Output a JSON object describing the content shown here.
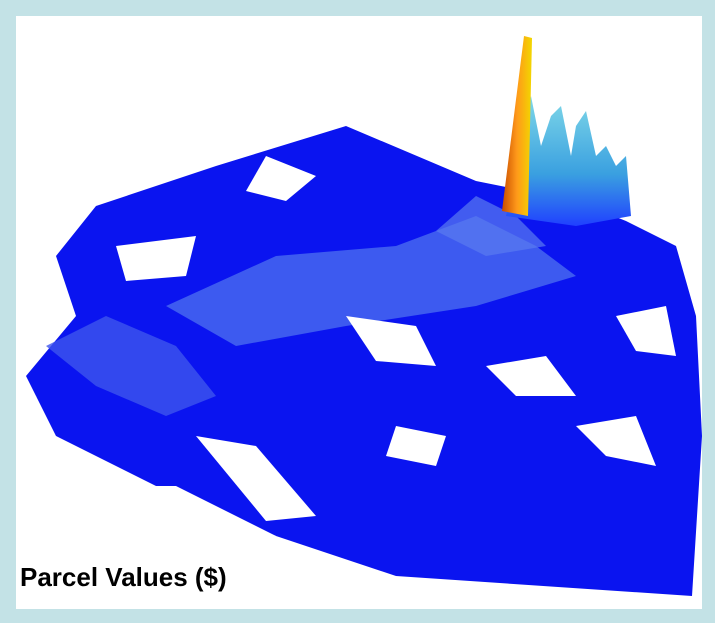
{
  "caption": "Parcel Values ($)"
}
